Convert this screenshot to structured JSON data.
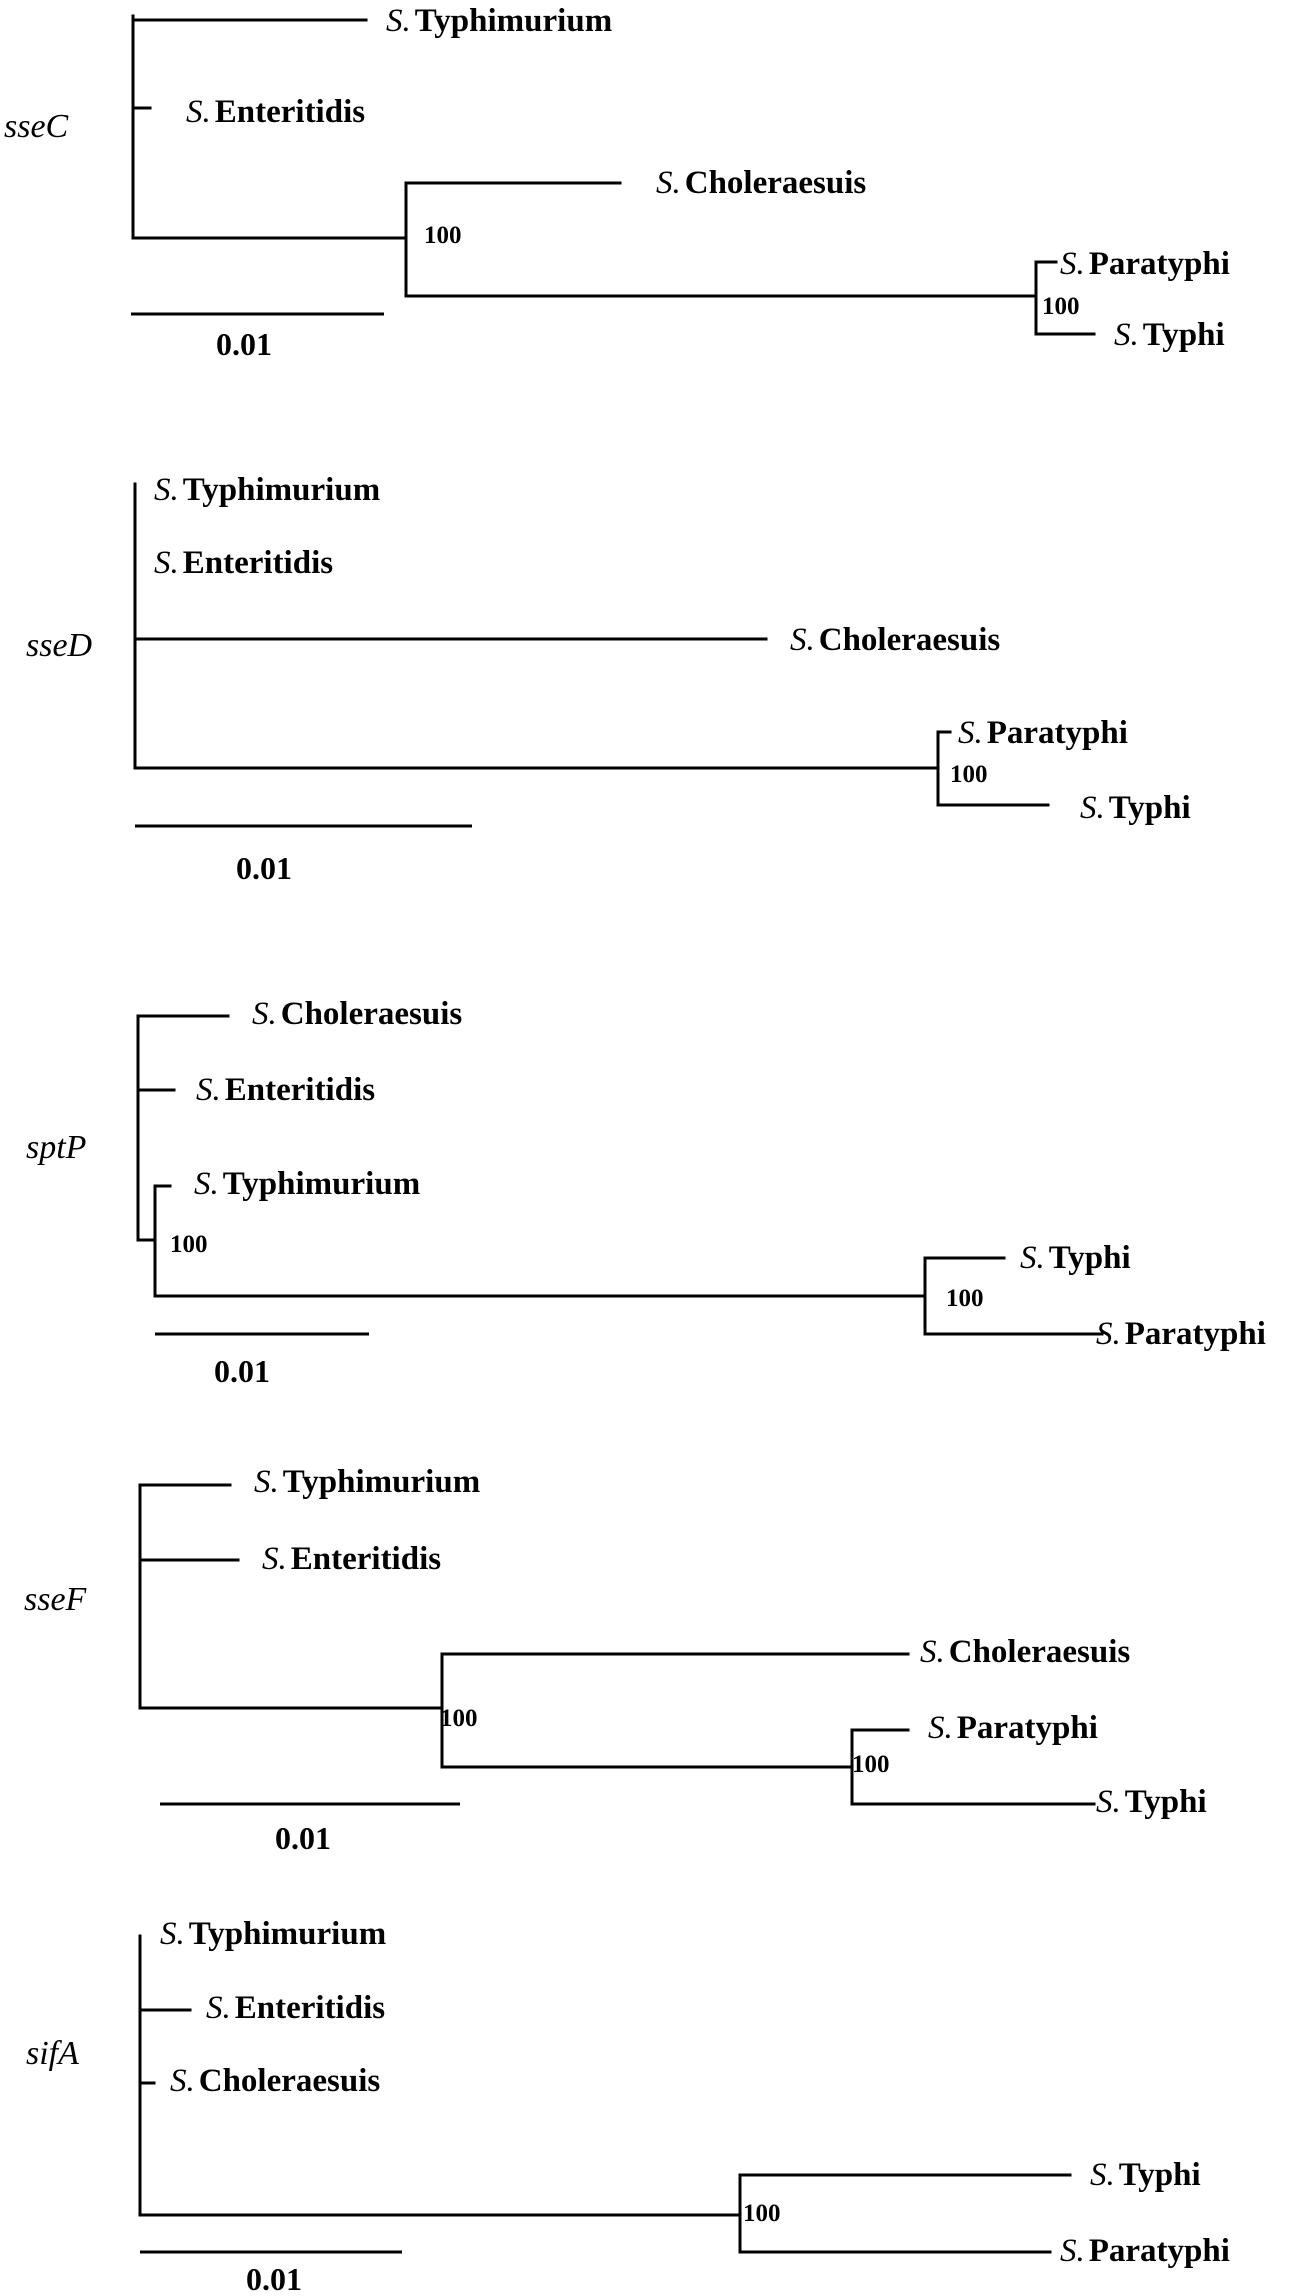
{
  "trees": [
    {
      "gene": "sseC",
      "scale_label": "0.01",
      "taxa": [
        {
          "genus": "S.",
          "species": "Typhimurium"
        },
        {
          "genus": "S.",
          "species": "Enteritidis"
        },
        {
          "genus": "S.",
          "species": "Choleraesuis"
        },
        {
          "genus": "S.",
          "species": "Paratyphi"
        },
        {
          "genus": "S.",
          "species": "Typhi"
        }
      ],
      "bootstraps": [
        "100",
        "100"
      ]
    },
    {
      "gene": "sseD",
      "scale_label": "0.01",
      "taxa": [
        {
          "genus": "S.",
          "species": "Typhimurium"
        },
        {
          "genus": "S.",
          "species": "Enteritidis"
        },
        {
          "genus": "S.",
          "species": "Choleraesuis"
        },
        {
          "genus": "S.",
          "species": "Paratyphi"
        },
        {
          "genus": "S.",
          "species": "Typhi"
        }
      ],
      "bootstraps": [
        "100"
      ]
    },
    {
      "gene": "sptP",
      "scale_label": "0.01",
      "taxa": [
        {
          "genus": "S.",
          "species": "Choleraesuis"
        },
        {
          "genus": "S.",
          "species": "Enteritidis"
        },
        {
          "genus": "S.",
          "species": "Typhimurium"
        },
        {
          "genus": "S.",
          "species": "Typhi"
        },
        {
          "genus": "S.",
          "species": "Paratyphi"
        }
      ],
      "bootstraps": [
        "100",
        "100"
      ]
    },
    {
      "gene": "sseF",
      "scale_label": "0.01",
      "taxa": [
        {
          "genus": "S.",
          "species": "Typhimurium"
        },
        {
          "genus": "S.",
          "species": "Enteritidis"
        },
        {
          "genus": "S.",
          "species": "Choleraesuis"
        },
        {
          "genus": "S.",
          "species": "Paratyphi"
        },
        {
          "genus": "S.",
          "species": "Typhi"
        }
      ],
      "bootstraps": [
        "100",
        "100"
      ]
    },
    {
      "gene": "sifA",
      "scale_label": "0.01",
      "taxa": [
        {
          "genus": "S.",
          "species": "Typhimurium"
        },
        {
          "genus": "S.",
          "species": "Enteritidis"
        },
        {
          "genus": "S.",
          "species": "Choleraesuis"
        },
        {
          "genus": "S.",
          "species": "Typhi"
        },
        {
          "genus": "S.",
          "species": "Paratyphi"
        }
      ],
      "bootstraps": [
        "100"
      ]
    }
  ]
}
